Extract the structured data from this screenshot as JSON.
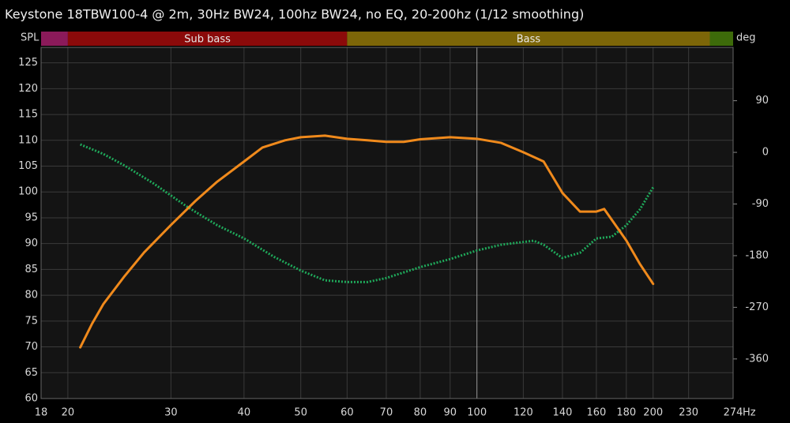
{
  "chart_data": {
    "type": "line",
    "title": "Keystone 18TBW100-4 @ 2m, 30Hz BW24, 100hz BW24, no EQ, 20-200hz (1/12 smoothing)",
    "y_label": "SPL",
    "y2_label": "deg",
    "x_unit": "Hz",
    "log_x": true,
    "grid": true,
    "xlim": [
      18,
      274
    ],
    "xticks": [
      18,
      20,
      30,
      40,
      50,
      60,
      70,
      80,
      90,
      100,
      120,
      140,
      160,
      180,
      200,
      230,
      274
    ],
    "ylim": [
      60,
      128
    ],
    "yticks": [
      60,
      65,
      70,
      75,
      80,
      85,
      90,
      95,
      100,
      105,
      110,
      115,
      120,
      125
    ],
    "y2lim": [
      -429,
      183
    ],
    "y2ticks": [
      90,
      0,
      -90,
      -180,
      -270,
      -360
    ],
    "bands": [
      {
        "from": 18,
        "to": 20,
        "color": "#8b1a5a"
      },
      {
        "from": 20,
        "to": 60,
        "color": "#8b0a0a",
        "label": "Sub bass"
      },
      {
        "from": 60,
        "to": 250,
        "color": "#7d6608",
        "label": "Bass"
      },
      {
        "from": 250,
        "to": 274,
        "color": "#3d6b0a"
      }
    ],
    "series": [
      {
        "color": "#f08a1c",
        "style": "solid",
        "x": [
          21,
          22,
          23,
          25,
          27,
          30,
          33,
          36,
          40,
          43,
          47,
          50,
          55,
          60,
          65,
          70,
          75,
          80,
          90,
          100,
          110,
          120,
          130,
          140,
          150,
          160,
          165,
          180,
          190,
          200
        ],
        "values": [
          69.9,
          74.5,
          78.3,
          83.7,
          88.3,
          93.6,
          98.2,
          102,
          105.9,
          108.6,
          110,
          110.6,
          110.9,
          110.3,
          110,
          109.7,
          109.7,
          110.2,
          110.6,
          110.3,
          109.5,
          107.7,
          105.9,
          99.8,
          96.2,
          96.2,
          96.7,
          90.6,
          86,
          82.2
        ]
      },
      {
        "color": "#1fa85a",
        "style": "dotted",
        "axis": "y2",
        "x": [
          21,
          23,
          25,
          28,
          32,
          36,
          40,
          45,
          50,
          55,
          60,
          65,
          70,
          80,
          90,
          100,
          110,
          125,
          130,
          140,
          150,
          160,
          170,
          180,
          190,
          200
        ],
        "values": [
          13.8,
          -2.8,
          -23,
          -54,
          -95,
          -127,
          -150,
          -182,
          -206,
          -223,
          -226,
          -226,
          -219,
          -200,
          -186,
          -171,
          -161,
          -154,
          -161,
          -184,
          -175,
          -150,
          -147,
          -127,
          -99,
          -61
        ]
      }
    ]
  }
}
